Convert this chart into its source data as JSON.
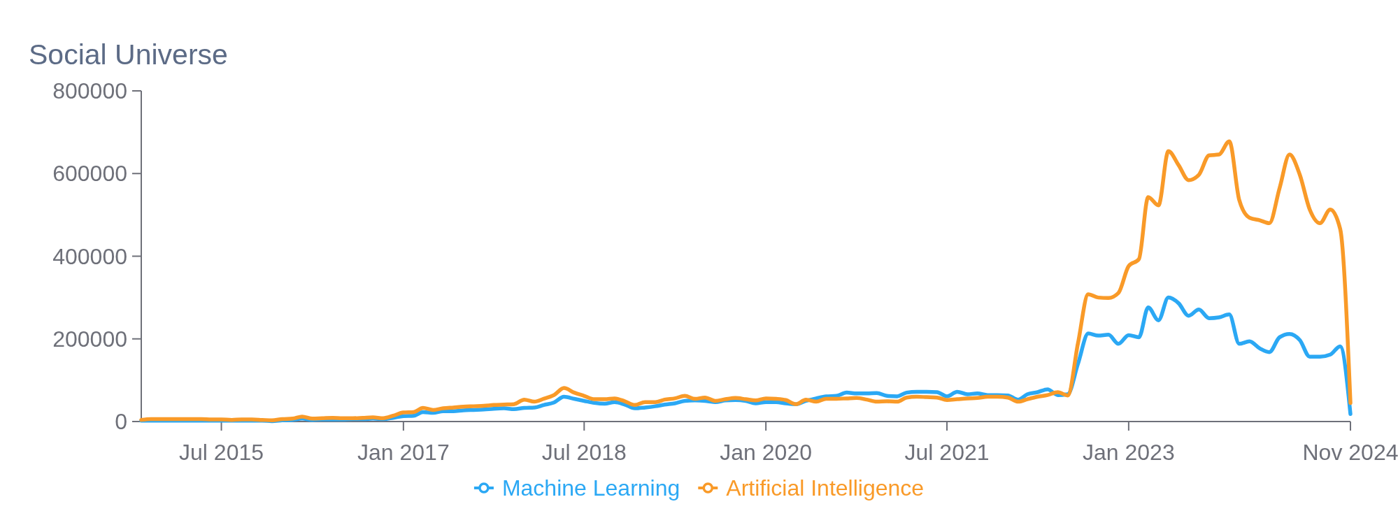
{
  "chart_data": {
    "type": "line",
    "title": "Social Universe",
    "x": [
      "2014-11",
      "2014-12",
      "2015-01",
      "2015-02",
      "2015-03",
      "2015-04",
      "2015-05",
      "2015-06",
      "2015-07",
      "2015-08",
      "2015-09",
      "2015-10",
      "2015-11",
      "2015-12",
      "2016-01",
      "2016-02",
      "2016-03",
      "2016-04",
      "2016-05",
      "2016-06",
      "2016-07",
      "2016-08",
      "2016-09",
      "2016-10",
      "2016-11",
      "2016-12",
      "2017-01",
      "2017-02",
      "2017-03",
      "2017-04",
      "2017-05",
      "2017-06",
      "2017-07",
      "2017-08",
      "2017-09",
      "2017-10",
      "2017-11",
      "2017-12",
      "2018-01",
      "2018-02",
      "2018-03",
      "2018-04",
      "2018-05",
      "2018-06",
      "2018-07",
      "2018-08",
      "2018-09",
      "2018-10",
      "2018-11",
      "2018-12",
      "2019-01",
      "2019-02",
      "2019-03",
      "2019-04",
      "2019-05",
      "2019-06",
      "2019-07",
      "2019-08",
      "2019-09",
      "2019-10",
      "2019-11",
      "2019-12",
      "2020-01",
      "2020-02",
      "2020-03",
      "2020-04",
      "2020-05",
      "2020-06",
      "2020-07",
      "2020-08",
      "2020-09",
      "2020-10",
      "2020-11",
      "2020-12",
      "2021-01",
      "2021-02",
      "2021-03",
      "2021-04",
      "2021-05",
      "2021-06",
      "2021-07",
      "2021-08",
      "2021-09",
      "2021-10",
      "2021-11",
      "2021-12",
      "2022-01",
      "2022-02",
      "2022-03",
      "2022-04",
      "2022-05",
      "2022-06",
      "2022-07",
      "2022-08",
      "2022-09",
      "2022-10",
      "2022-11",
      "2022-12",
      "2023-01",
      "2023-02",
      "2023-03",
      "2023-04",
      "2023-05",
      "2023-06",
      "2023-07",
      "2023-08",
      "2023-09",
      "2023-10",
      "2023-11",
      "2023-12",
      "2024-01",
      "2024-02",
      "2024-03",
      "2024-04",
      "2024-05",
      "2024-06",
      "2024-07",
      "2024-08",
      "2024-09",
      "2024-10",
      "2024-11"
    ],
    "series": [
      {
        "name": "Machine Learning",
        "color": "#2ba8f4",
        "values": [
          2000,
          2000,
          2000,
          2000,
          2000,
          2000,
          2000,
          2000,
          2000,
          2000,
          2000,
          2000,
          2000,
          1000,
          3000,
          4000,
          7000,
          4000,
          5000,
          5000,
          5000,
          6000,
          6000,
          7000,
          6000,
          9000,
          13000,
          14000,
          23000,
          21000,
          25000,
          25000,
          27000,
          28000,
          29000,
          31000,
          32000,
          30000,
          33000,
          34000,
          40000,
          46000,
          60000,
          55000,
          50000,
          45000,
          43000,
          47000,
          41000,
          32000,
          34000,
          37000,
          41000,
          44000,
          50000,
          51000,
          50000,
          47000,
          51000,
          52000,
          50000,
          44000,
          47000,
          47000,
          44000,
          42000,
          50000,
          56000,
          61000,
          62000,
          70000,
          68000,
          68000,
          69000,
          62000,
          61000,
          70000,
          72000,
          72000,
          71000,
          61000,
          72000,
          66000,
          68000,
          64000,
          64000,
          63000,
          53000,
          66000,
          71000,
          78000,
          64000,
          66000,
          140000,
          213000,
          208000,
          210000,
          188000,
          209000,
          204000,
          276000,
          245000,
          300000,
          286000,
          256000,
          271000,
          250000,
          252000,
          259000,
          188000,
          194000,
          177000,
          168000,
          204000,
          212000,
          197000,
          157000,
          157000,
          162000,
          182000,
          18000
        ]
      },
      {
        "name": "Artificial Intelligence",
        "color": "#f99a28",
        "values": [
          4000,
          6000,
          6000,
          6000,
          6000,
          6000,
          6000,
          5000,
          5000,
          4000,
          5000,
          5000,
          4000,
          3000,
          6000,
          7000,
          12000,
          7000,
          8000,
          9000,
          8000,
          8000,
          9000,
          10000,
          8000,
          14000,
          22000,
          23000,
          33000,
          28000,
          32000,
          34000,
          36000,
          37000,
          38000,
          40000,
          41000,
          42000,
          53000,
          48000,
          55000,
          64000,
          81000,
          70000,
          62000,
          54000,
          54000,
          56000,
          49000,
          40000,
          47000,
          47000,
          53000,
          56000,
          62000,
          55000,
          58000,
          50000,
          54000,
          57000,
          54000,
          51000,
          56000,
          55000,
          52000,
          42000,
          53000,
          48000,
          55000,
          55000,
          56000,
          57000,
          53000,
          48000,
          49000,
          48000,
          58000,
          60000,
          59000,
          58000,
          52000,
          54000,
          56000,
          57000,
          60000,
          60000,
          58000,
          48000,
          54000,
          60000,
          64000,
          71000,
          63000,
          190000,
          308000,
          300000,
          299000,
          311000,
          376000,
          393000,
          543000,
          523000,
          654000,
          620000,
          584000,
          597000,
          644000,
          646000,
          678000,
          536000,
          493000,
          487000,
          480000,
          565000,
          646000,
          597000,
          513000,
          480000,
          513000,
          466000,
          45000
        ]
      }
    ],
    "xlim": [
      "2014-11",
      "2024-11"
    ],
    "xticks": [
      {
        "value": "2015-07",
        "label": "Jul 2015"
      },
      {
        "value": "2017-01",
        "label": "Jan 2017"
      },
      {
        "value": "2018-07",
        "label": "Jul 2018"
      },
      {
        "value": "2020-01",
        "label": "Jan 2020"
      },
      {
        "value": "2021-07",
        "label": "Jul 2021"
      },
      {
        "value": "2023-01",
        "label": "Jan 2023"
      },
      {
        "value": "2024-11",
        "label": "Nov 2024"
      }
    ],
    "ylim": [
      0,
      800000
    ],
    "yticks": [
      0,
      200000,
      400000,
      600000,
      800000
    ],
    "legend": "bottom"
  }
}
